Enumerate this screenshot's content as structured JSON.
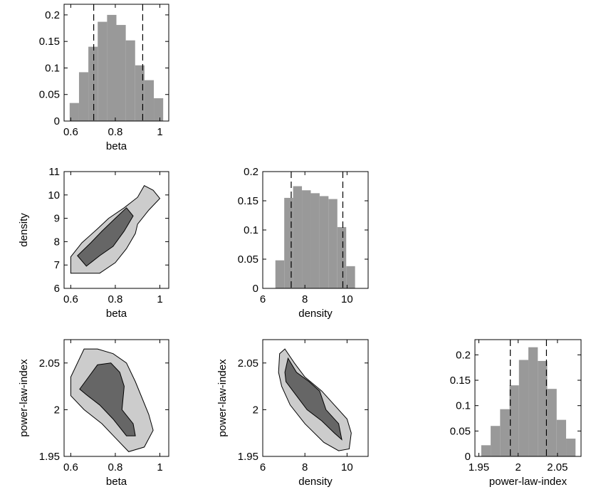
{
  "figure": {
    "layout": "corner-plot",
    "grid": false,
    "legend": "none",
    "colors": {
      "bar": "#999999",
      "outer_contour": "#cccccc",
      "inner_contour": "#666666",
      "line": "#000000"
    }
  },
  "chart_data": [
    {
      "id": "hist-beta",
      "type": "bar",
      "title": "",
      "xlabel": "beta",
      "ylabel": "",
      "xlim": [
        0.57,
        1.04
      ],
      "ylim": [
        0,
        0.22
      ],
      "xticks": [
        0.6,
        0.8,
        1
      ],
      "xtick_labels": [
        "0.6",
        "0.8",
        "1"
      ],
      "yticks": [
        0,
        0.05,
        0.1,
        0.15,
        0.2
      ],
      "ytick_labels": [
        "0",
        "0.05",
        "0.1",
        "0.15",
        "0.2"
      ],
      "bin_edges": [
        0.595,
        0.637,
        0.679,
        0.721,
        0.763,
        0.805,
        0.847,
        0.889,
        0.931,
        0.973,
        1.015
      ],
      "values": [
        0.034,
        0.092,
        0.14,
        0.187,
        0.2,
        0.181,
        0.152,
        0.105,
        0.077,
        0.043
      ],
      "interval_lines": [
        0.703,
        0.923
      ]
    },
    {
      "id": "contour-beta-density",
      "type": "contour",
      "title": "",
      "xlabel": "beta",
      "ylabel": "density",
      "xlim": [
        0.57,
        1.04
      ],
      "ylim": [
        6,
        11
      ],
      "xticks": [
        0.6,
        0.8,
        1
      ],
      "xtick_labels": [
        "0.6",
        "0.8",
        "1"
      ],
      "yticks": [
        6,
        7,
        8,
        9,
        10,
        11
      ],
      "ytick_labels": [
        "6",
        "7",
        "8",
        "9",
        "10",
        "11"
      ],
      "outer_region": [
        [
          0.6,
          6.65
        ],
        [
          0.6,
          7.35
        ],
        [
          0.65,
          7.95
        ],
        [
          0.72,
          8.55
        ],
        [
          0.77,
          9.0
        ],
        [
          0.84,
          9.45
        ],
        [
          0.9,
          9.9
        ],
        [
          0.93,
          10.4
        ],
        [
          0.97,
          10.2
        ],
        [
          1.0,
          9.85
        ],
        [
          0.95,
          9.35
        ],
        [
          0.9,
          8.75
        ],
        [
          0.89,
          8.35
        ],
        [
          0.85,
          7.7
        ],
        [
          0.8,
          7.1
        ],
        [
          0.73,
          6.65
        ]
      ],
      "inner_region": [
        [
          0.63,
          7.4
        ],
        [
          0.69,
          7.95
        ],
        [
          0.74,
          8.45
        ],
        [
          0.8,
          9.0
        ],
        [
          0.85,
          9.45
        ],
        [
          0.88,
          9.1
        ],
        [
          0.84,
          8.45
        ],
        [
          0.79,
          7.8
        ],
        [
          0.73,
          7.4
        ],
        [
          0.67,
          6.95
        ]
      ]
    },
    {
      "id": "contour-beta-powerlaw",
      "type": "contour",
      "title": "",
      "xlabel": "beta",
      "ylabel": "power-law-index",
      "xlim": [
        0.57,
        1.04
      ],
      "ylim": [
        1.95,
        2.075
      ],
      "xticks": [
        0.6,
        0.8,
        1
      ],
      "xtick_labels": [
        "0.6",
        "0.8",
        "1"
      ],
      "yticks": [
        1.95,
        2,
        2.05
      ],
      "ytick_labels": [
        "1.95",
        "2",
        "2.05"
      ],
      "outer_region": [
        [
          0.6,
          2.035
        ],
        [
          0.6,
          2.015
        ],
        [
          0.66,
          2.0
        ],
        [
          0.74,
          1.985
        ],
        [
          0.8,
          1.97
        ],
        [
          0.86,
          1.955
        ],
        [
          0.93,
          1.96
        ],
        [
          0.97,
          1.978
        ],
        [
          0.95,
          1.995
        ],
        [
          0.89,
          2.03
        ],
        [
          0.85,
          2.05
        ],
        [
          0.79,
          2.06
        ],
        [
          0.72,
          2.065
        ],
        [
          0.66,
          2.065
        ]
      ],
      "inner_region": [
        [
          0.64,
          2.022
        ],
        [
          0.68,
          2.035
        ],
        [
          0.72,
          2.048
        ],
        [
          0.78,
          2.05
        ],
        [
          0.82,
          2.04
        ],
        [
          0.84,
          2.025
        ],
        [
          0.83,
          2.0
        ],
        [
          0.88,
          1.985
        ],
        [
          0.89,
          1.972
        ],
        [
          0.85,
          1.972
        ],
        [
          0.79,
          1.99
        ],
        [
          0.73,
          2.005
        ],
        [
          0.67,
          2.016
        ]
      ]
    },
    {
      "id": "hist-density",
      "type": "bar",
      "title": "",
      "xlabel": "density",
      "ylabel": "",
      "xlim": [
        6,
        11
      ],
      "ylim": [
        0,
        0.2
      ],
      "xticks": [
        6,
        8,
        10
      ],
      "xtick_labels": [
        "6",
        "8",
        "10"
      ],
      "yticks": [
        0,
        0.05,
        0.1,
        0.15,
        0.2
      ],
      "ytick_labels": [
        "0",
        "0.05",
        "0.1",
        "0.15",
        "0.2"
      ],
      "bin_edges": [
        6.6,
        7.02,
        7.44,
        7.86,
        8.28,
        8.7,
        9.12,
        9.54,
        9.96,
        10.38,
        10.8
      ],
      "values": [
        0.048,
        0.155,
        0.175,
        0.168,
        0.163,
        0.158,
        0.153,
        0.105,
        0.038,
        0
      ],
      "interval_lines": [
        7.35,
        9.8
      ]
    },
    {
      "id": "contour-density-powerlaw",
      "type": "contour",
      "title": "",
      "xlabel": "density",
      "ylabel": "power-law-index",
      "xlim": [
        6,
        11
      ],
      "ylim": [
        1.95,
        2.075
      ],
      "xticks": [
        6,
        8,
        10
      ],
      "xtick_labels": [
        "6",
        "8",
        "10"
      ],
      "yticks": [
        1.95,
        2,
        2.05
      ],
      "ytick_labels": [
        "1.95",
        "2",
        "2.05"
      ],
      "outer_region": [
        [
          6.75,
          2.04
        ],
        [
          6.8,
          2.06
        ],
        [
          7.05,
          2.065
        ],
        [
          7.5,
          2.05
        ],
        [
          8.0,
          2.035
        ],
        [
          8.8,
          2.02
        ],
        [
          9.4,
          2.005
        ],
        [
          10.0,
          1.99
        ],
        [
          10.2,
          1.975
        ],
        [
          10.1,
          1.958
        ],
        [
          9.6,
          1.956
        ],
        [
          8.9,
          1.965
        ],
        [
          8.0,
          1.985
        ],
        [
          7.3,
          2.005
        ],
        [
          6.9,
          2.025
        ]
      ],
      "inner_region": [
        [
          7.05,
          2.04
        ],
        [
          7.2,
          2.055
        ],
        [
          7.6,
          2.04
        ],
        [
          8.2,
          2.03
        ],
        [
          8.7,
          2.02
        ],
        [
          9.0,
          2.0
        ],
        [
          9.6,
          1.985
        ],
        [
          9.75,
          1.968
        ],
        [
          9.4,
          1.975
        ],
        [
          8.8,
          1.988
        ],
        [
          8.1,
          2.0
        ],
        [
          7.5,
          2.018
        ],
        [
          7.1,
          2.03
        ]
      ]
    },
    {
      "id": "hist-powerlaw",
      "type": "bar",
      "title": "",
      "xlabel": "power-law-index",
      "ylabel": "",
      "xlim": [
        1.945,
        2.08
      ],
      "ylim": [
        0,
        0.23
      ],
      "xticks": [
        1.95,
        2,
        2.05
      ],
      "xtick_labels": [
        "1.95",
        "2",
        "2.05"
      ],
      "yticks": [
        0,
        0.05,
        0.1,
        0.15,
        0.2
      ],
      "ytick_labels": [
        "0",
        "0.05",
        "0.1",
        "0.15",
        "0.2"
      ],
      "bin_edges": [
        1.953,
        1.965,
        1.977,
        1.989,
        2.001,
        2.013,
        2.025,
        2.037,
        2.049,
        2.061,
        2.073
      ],
      "values": [
        0.022,
        0.06,
        0.093,
        0.14,
        0.19,
        0.215,
        0.188,
        0.133,
        0.072,
        0.035
      ],
      "interval_lines": [
        1.99,
        2.036
      ]
    }
  ]
}
